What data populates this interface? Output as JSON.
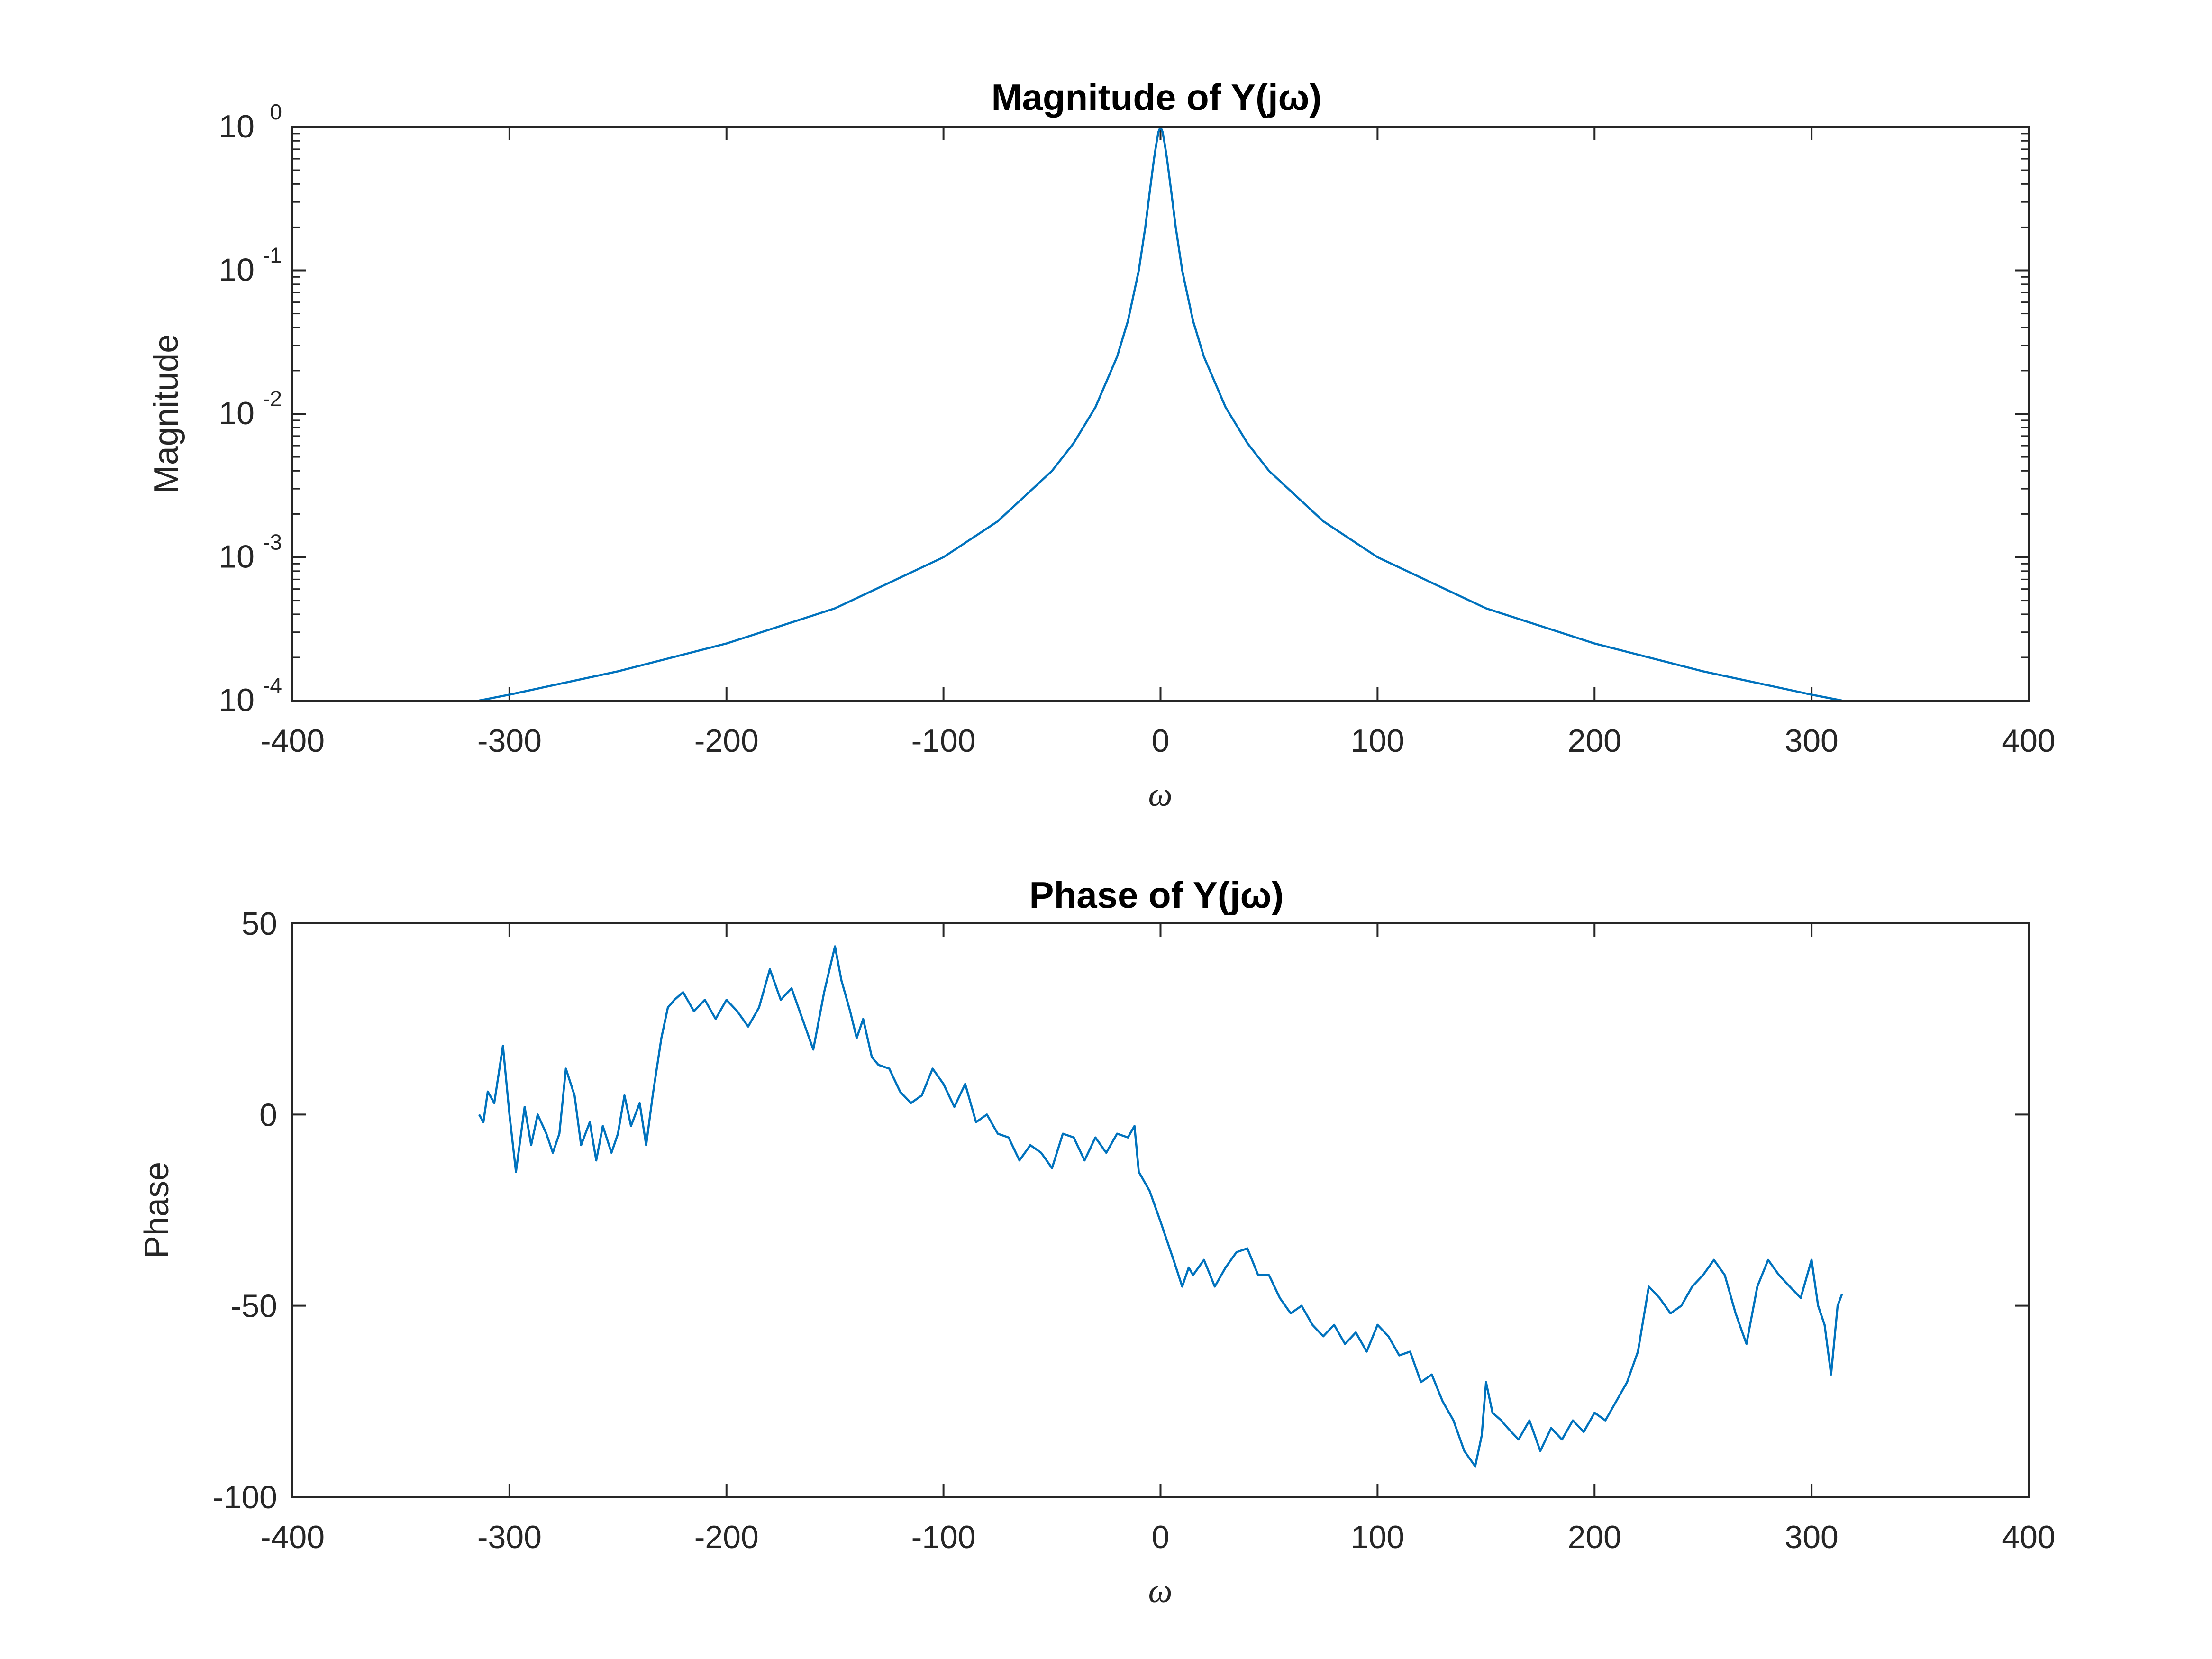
{
  "chart_data": [
    {
      "type": "line",
      "title": "Magnitude of Y(jω)",
      "xlabel": "ω",
      "ylabel": "Magnitude",
      "xlim": [
        -400,
        400
      ],
      "ylim": [
        0.0001,
        1
      ],
      "yscale": "log",
      "x_ticks": [
        -400,
        -300,
        -200,
        -100,
        0,
        100,
        200,
        300,
        400
      ],
      "x_tick_labels": [
        "-400",
        "-300",
        "-200",
        "-100",
        "0",
        "100",
        "200",
        "300",
        "400"
      ],
      "y_ticks": [
        1,
        0.1,
        0.01,
        0.001,
        0.0001
      ],
      "y_tick_labels": [
        {
          "base": "10",
          "exp": "0"
        },
        {
          "base": "10",
          "exp": "-1"
        },
        {
          "base": "10",
          "exp": "-2"
        },
        {
          "base": "10",
          "exp": "-3"
        },
        {
          "base": "10",
          "exp": "-4"
        }
      ],
      "grid": false,
      "legend": "none",
      "series": [
        {
          "color": "#0072bd",
          "x": [
            -314,
            -300,
            -250,
            -200,
            -150,
            -100,
            -75,
            -50,
            -40,
            -30,
            -20,
            -15,
            -10,
            -7,
            -5,
            -3,
            -2,
            -1,
            0,
            1,
            2,
            3,
            5,
            7,
            10,
            15,
            20,
            30,
            40,
            50,
            75,
            100,
            150,
            200,
            250,
            300,
            314
          ],
          "y": [
            0.0001,
            0.00011,
            0.00016,
            0.00025,
            0.00044,
            0.001,
            0.00178,
            0.004,
            0.00625,
            0.0111,
            0.025,
            0.0444,
            0.1,
            0.2,
            0.35,
            0.6,
            0.75,
            0.92,
            1,
            0.92,
            0.75,
            0.6,
            0.35,
            0.2,
            0.1,
            0.0444,
            0.025,
            0.0111,
            0.00625,
            0.004,
            0.00178,
            0.001,
            0.00044,
            0.00025,
            0.00016,
            0.00011,
            0.0001
          ]
        }
      ]
    },
    {
      "type": "line",
      "title": "Phase of Y(jω)",
      "xlabel": "ω",
      "ylabel": "Phase",
      "xlim": [
        -400,
        400
      ],
      "ylim": [
        -100,
        50
      ],
      "x_ticks": [
        -400,
        -300,
        -200,
        -100,
        0,
        100,
        200,
        300,
        400
      ],
      "x_tick_labels": [
        "-400",
        "-300",
        "-200",
        "-100",
        "0",
        "100",
        "200",
        "300",
        "400"
      ],
      "y_ticks": [
        -100,
        -50,
        0,
        50
      ],
      "y_tick_labels": [
        "-100",
        "-50",
        "0",
        "50"
      ],
      "grid": false,
      "legend": "none",
      "series": [
        {
          "color": "#0072bd",
          "x": [
            -314,
            -312,
            -310,
            -307,
            -303,
            -300,
            -297,
            -293,
            -290,
            -287,
            -283,
            -280,
            -277,
            -274,
            -270,
            -267,
            -263,
            -260,
            -257,
            -253,
            -250,
            -247,
            -244,
            -240,
            -237,
            -234,
            -230,
            -227,
            -224,
            -220,
            -215,
            -210,
            -205,
            -200,
            -195,
            -190,
            -185,
            -180,
            -175,
            -170,
            -165,
            -160,
            -155,
            -150,
            -147,
            -143,
            -140,
            -137,
            -133,
            -130,
            -125,
            -120,
            -115,
            -110,
            -105,
            -100,
            -95,
            -90,
            -85,
            -80,
            -75,
            -70,
            -65,
            -60,
            -55,
            -50,
            -45,
            -40,
            -35,
            -30,
            -25,
            -20,
            -15,
            -12,
            -10,
            -5,
            0,
            3,
            6,
            10,
            13,
            15,
            20,
            25,
            30,
            35,
            40,
            45,
            50,
            55,
            60,
            65,
            70,
            75,
            80,
            85,
            90,
            95,
            100,
            105,
            110,
            115,
            120,
            125,
            130,
            135,
            140,
            145,
            148,
            150,
            153,
            157,
            160,
            165,
            170,
            175,
            180,
            185,
            190,
            195,
            200,
            205,
            210,
            215,
            220,
            225,
            230,
            235,
            240,
            245,
            250,
            255,
            260,
            265,
            270,
            275,
            280,
            285,
            290,
            295,
            300,
            303,
            306,
            309,
            312,
            314
          ],
          "y": [
            0,
            -2,
            6,
            3,
            18,
            0,
            -15,
            2,
            -8,
            0,
            -5,
            -10,
            -5,
            12,
            5,
            -8,
            -2,
            -12,
            -3,
            -10,
            -5,
            5,
            -3,
            3,
            -8,
            5,
            20,
            28,
            30,
            32,
            27,
            30,
            25,
            30,
            27,
            23,
            28,
            38,
            30,
            33,
            25,
            17,
            32,
            44,
            35,
            27,
            20,
            25,
            15,
            13,
            12,
            6,
            3,
            5,
            12,
            8,
            2,
            8,
            -2,
            0,
            -5,
            -6,
            -12,
            -8,
            -10,
            -14,
            -5,
            -6,
            -12,
            -6,
            -10,
            -5,
            -6,
            -3,
            -15,
            -20,
            -28,
            -33,
            -38,
            -45,
            -40,
            -42,
            -38,
            -45,
            -40,
            -36,
            -35,
            -42,
            -42,
            -48,
            -52,
            -50,
            -55,
            -58,
            -55,
            -60,
            -57,
            -62,
            -55,
            -58,
            -63,
            -62,
            -70,
            -68,
            -75,
            -80,
            -88,
            -92,
            -84,
            -70,
            -78,
            -80,
            -82,
            -85,
            -80,
            -88,
            -82,
            -85,
            -80,
            -83,
            -78,
            -80,
            -75,
            -70,
            -62,
            -45,
            -48,
            -52,
            -50,
            -45,
            -42,
            -38,
            -42,
            -52,
            -60,
            -45,
            -38,
            -42,
            -45,
            -48,
            -38,
            -50,
            -55,
            -68,
            -50,
            -47
          ]
        }
      ]
    }
  ]
}
